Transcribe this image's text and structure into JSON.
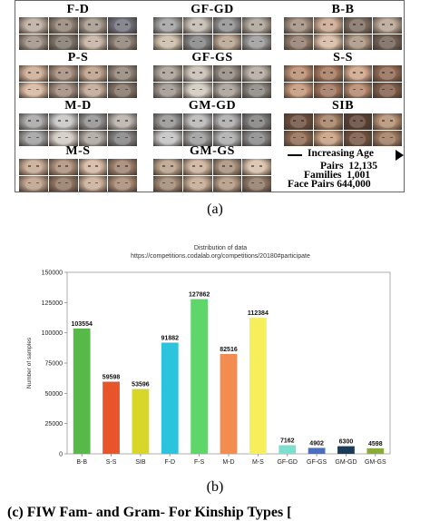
{
  "panel_a": {
    "groups": [
      {
        "id": "fd",
        "label": "F-D",
        "tones": [
          "#b8a99a",
          "#8f8073",
          "#a09385",
          "#6e6e78",
          "#9a8c80",
          "#7d7268",
          "#c0ae9e",
          "#8a7d72"
        ]
      },
      {
        "id": "gfgd",
        "label": "GF-GD",
        "tones": [
          "#9d9d9d",
          "#bdb6ad",
          "#8b8b8b",
          "#a89f94",
          "#c7b9a5",
          "#7f7f7f",
          "#b39f8a",
          "#969696"
        ]
      },
      {
        "id": "bb",
        "label": "B-B",
        "tones": [
          "#9e8a7a",
          "#c6a48c",
          "#7a6a5c",
          "#b3a08f",
          "#8d7868",
          "#d2b6a0",
          "#a58f7c",
          "#6f5f52"
        ]
      },
      {
        "id": "ps",
        "label": "P-S",
        "tones": [
          "#c9a890",
          "#a08878",
          "#b89a84",
          "#8f8175",
          "#d4b29a",
          "#9b8678",
          "#bba28f",
          "#7f6f62"
        ]
      },
      {
        "id": "gfgs",
        "label": "GF-GS",
        "tones": [
          "#a59c92",
          "#c4bbb1",
          "#8e857c",
          "#b0a79d",
          "#9a928a",
          "#cfc6bb",
          "#a39a90",
          "#85807a"
        ]
      },
      {
        "id": "ss",
        "label": "S-S",
        "tones": [
          "#b5896d",
          "#a0745a",
          "#caa085",
          "#8e6650",
          "#c19274",
          "#9c7058",
          "#b08266",
          "#7e5a46"
        ]
      },
      {
        "id": "md",
        "label": "M-D",
        "tones": [
          "#a1a1a1",
          "#c2c2c2",
          "#8c8c8c",
          "#b3aca6",
          "#9a9a9a",
          "#d0c9c2",
          "#a8a09a",
          "#7e7e7e"
        ]
      },
      {
        "id": "gmgd",
        "label": "GM-GD",
        "tones": [
          "#8e8e8e",
          "#b2b2b2",
          "#a6a6a6",
          "#7a7a7a",
          "#bfbfbf",
          "#959595",
          "#a8a8a8",
          "#838383"
        ]
      },
      {
        "id": "sib",
        "label": "SIB",
        "tones": [
          "#6b4b3a",
          "#a07a5f",
          "#5a3e30",
          "#b08a6e",
          "#8a664e",
          "#c29a7c",
          "#704f3d",
          "#9a765c"
        ]
      },
      {
        "id": "ms",
        "label": "M-S",
        "tones": [
          "#c3a58f",
          "#a88b76",
          "#d0b49e",
          "#9a7e6a",
          "#b99b85",
          "#8d725f",
          "#c7aa94",
          "#a4866f"
        ]
      },
      {
        "id": "gmgs",
        "label": "GM-GS",
        "tones": [
          "#b59c86",
          "#c8ad97",
          "#a48b76",
          "#d6bca6",
          "#9c8470",
          "#bfa48e",
          "#ad937d",
          "#8c7462"
        ]
      }
    ],
    "info": {
      "increasing_age": "Increasing Age",
      "pairs_label": "Pairs",
      "pairs_value": "12,135",
      "families_label": "Families",
      "families_value": "1,001",
      "face_pairs_label": "Face Pairs",
      "face_pairs_value": "644,000"
    },
    "caption": "(a)"
  },
  "panel_b": {
    "caption": "(b)",
    "chart_data": {
      "type": "bar",
      "title": "Distribution of data",
      "subtitle": "https://competitions.codalab.org/competitions/20180#participate",
      "ylabel": "Number of samples",
      "xlabel": "",
      "ylim": [
        0,
        150000
      ],
      "yticks": [
        0,
        25000,
        50000,
        75000,
        100000,
        125000,
        150000
      ],
      "grid": false,
      "categories": [
        "B-B",
        "S-S",
        "SIB",
        "F-D",
        "F-S",
        "M-D",
        "M-S",
        "GF-GD",
        "GF-GS",
        "GM-GD",
        "GM-GS"
      ],
      "values": [
        103554,
        59598,
        53596,
        91882,
        127862,
        82516,
        112384,
        7162,
        4902,
        6300,
        4598
      ],
      "colors": [
        "#57b947",
        "#e8552b",
        "#d9d62a",
        "#2cc3dc",
        "#5fd66a",
        "#f28c50",
        "#f6ee5a",
        "#7de0cf",
        "#4a6fc2",
        "#1c3a5a",
        "#8aab3a"
      ]
    }
  },
  "figure_caption": "(c) FIW Fam- and Gram- For Kinship Types [",
  "colors": {
    "axis": "#9a9a9a",
    "border": "#666666"
  }
}
